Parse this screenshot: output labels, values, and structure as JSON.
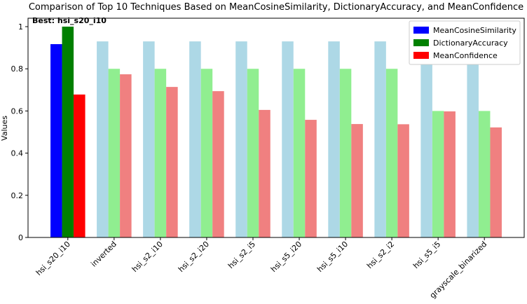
{
  "chart_data": {
    "type": "grouped_bar",
    "title": "Comparison of Top 10 Techniques Based on MeanCosineSimilarity, DictionaryAccuracy, and MeanConfidence",
    "annotation": "Best: hsi_s20_i10",
    "y_label": "Values",
    "categories": [
      "hsi_s20_i10",
      "inverted",
      "hsi_s2_i10",
      "hsi_s2_i20",
      "hsi_s2_i5",
      "hsi_s5_i20",
      "hsi_s5_i10",
      "hsi_s2_i2",
      "hsi_s5_i5",
      "grayscale_binarized"
    ],
    "highlight_index": 0,
    "series": [
      {
        "name": "MeanCosineSimilarity",
        "color": "blue",
        "other_color": "lightblue",
        "values": [
          0.917,
          0.93,
          0.93,
          0.93,
          0.93,
          0.93,
          0.93,
          0.93,
          0.93,
          0.93
        ]
      },
      {
        "name": "DictionaryAccuracy",
        "color": "green",
        "other_color": "lightgreen",
        "values": [
          1.0,
          0.8,
          0.8,
          0.8,
          0.8,
          0.8,
          0.8,
          0.8,
          0.6,
          0.6
        ]
      },
      {
        "name": "MeanConfidence",
        "color": "red",
        "other_color": "lightcoral",
        "values": [
          0.678,
          0.774,
          0.714,
          0.694,
          0.605,
          0.558,
          0.538,
          0.537,
          0.598,
          0.522
        ]
      }
    ],
    "ylim": [
      0,
      1.04
    ],
    "yticks": [
      0.0,
      0.2,
      0.4,
      0.6,
      0.8,
      1.0
    ],
    "legend": "upper right"
  }
}
